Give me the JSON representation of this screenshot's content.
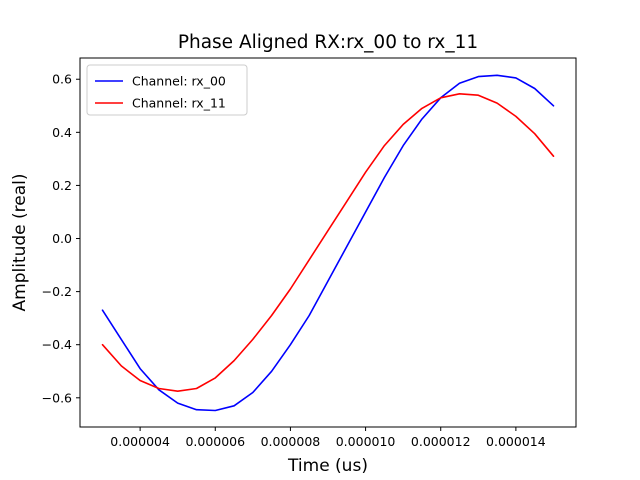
{
  "chart_data": {
    "type": "line",
    "title": "Phase Aligned RX:rx_00 to rx_11",
    "xlabel": "Time (us)",
    "ylabel": "Amplitude (real)",
    "xlim": [
      2.4e-06,
      1.56e-05
    ],
    "ylim": [
      -0.71,
      0.68
    ],
    "x_ticks": [
      4e-06,
      6e-06,
      8e-06,
      1e-05,
      1.2e-05,
      1.4e-05
    ],
    "x_tick_labels": [
      "0.000004",
      "0.000006",
      "0.000008",
      "0.000010",
      "0.000012",
      "0.000014"
    ],
    "y_ticks": [
      -0.6,
      -0.4,
      -0.2,
      0.0,
      0.2,
      0.4,
      0.6
    ],
    "y_tick_labels": [
      "−0.6",
      "−0.4",
      "−0.2",
      "0.0",
      "0.2",
      "0.4",
      "0.6"
    ],
    "grid": false,
    "legend_position": "top-left",
    "series": [
      {
        "name": "Channel: rx_00",
        "color": "#0000ff",
        "x": [
          3e-06,
          3.5e-06,
          4e-06,
          4.5e-06,
          5e-06,
          5.5e-06,
          6e-06,
          6.5e-06,
          7e-06,
          7.5e-06,
          8e-06,
          8.5e-06,
          9e-06,
          9.5e-06,
          1e-05,
          1.05e-05,
          1.1e-05,
          1.15e-05,
          1.2e-05,
          1.25e-05,
          1.3e-05,
          1.35e-05,
          1.4e-05,
          1.45e-05,
          1.5e-05
        ],
        "y": [
          -0.27,
          -0.38,
          -0.49,
          -0.57,
          -0.62,
          -0.645,
          -0.648,
          -0.63,
          -0.58,
          -0.5,
          -0.4,
          -0.29,
          -0.16,
          -0.03,
          0.1,
          0.23,
          0.35,
          0.45,
          0.53,
          0.585,
          0.61,
          0.615,
          0.605,
          0.565,
          0.5
        ]
      },
      {
        "name": "Channel: rx_11",
        "color": "#ff0000",
        "x": [
          3e-06,
          3.5e-06,
          4e-06,
          4.5e-06,
          5e-06,
          5.5e-06,
          6e-06,
          6.5e-06,
          7e-06,
          7.5e-06,
          8e-06,
          8.5e-06,
          9e-06,
          9.5e-06,
          1e-05,
          1.05e-05,
          1.1e-05,
          1.15e-05,
          1.2e-05,
          1.25e-05,
          1.3e-05,
          1.35e-05,
          1.4e-05,
          1.45e-05,
          1.5e-05
        ],
        "y": [
          -0.4,
          -0.48,
          -0.535,
          -0.565,
          -0.575,
          -0.565,
          -0.525,
          -0.46,
          -0.38,
          -0.29,
          -0.19,
          -0.08,
          0.03,
          0.14,
          0.25,
          0.35,
          0.43,
          0.49,
          0.53,
          0.545,
          0.54,
          0.51,
          0.46,
          0.395,
          0.31
        ]
      }
    ]
  }
}
